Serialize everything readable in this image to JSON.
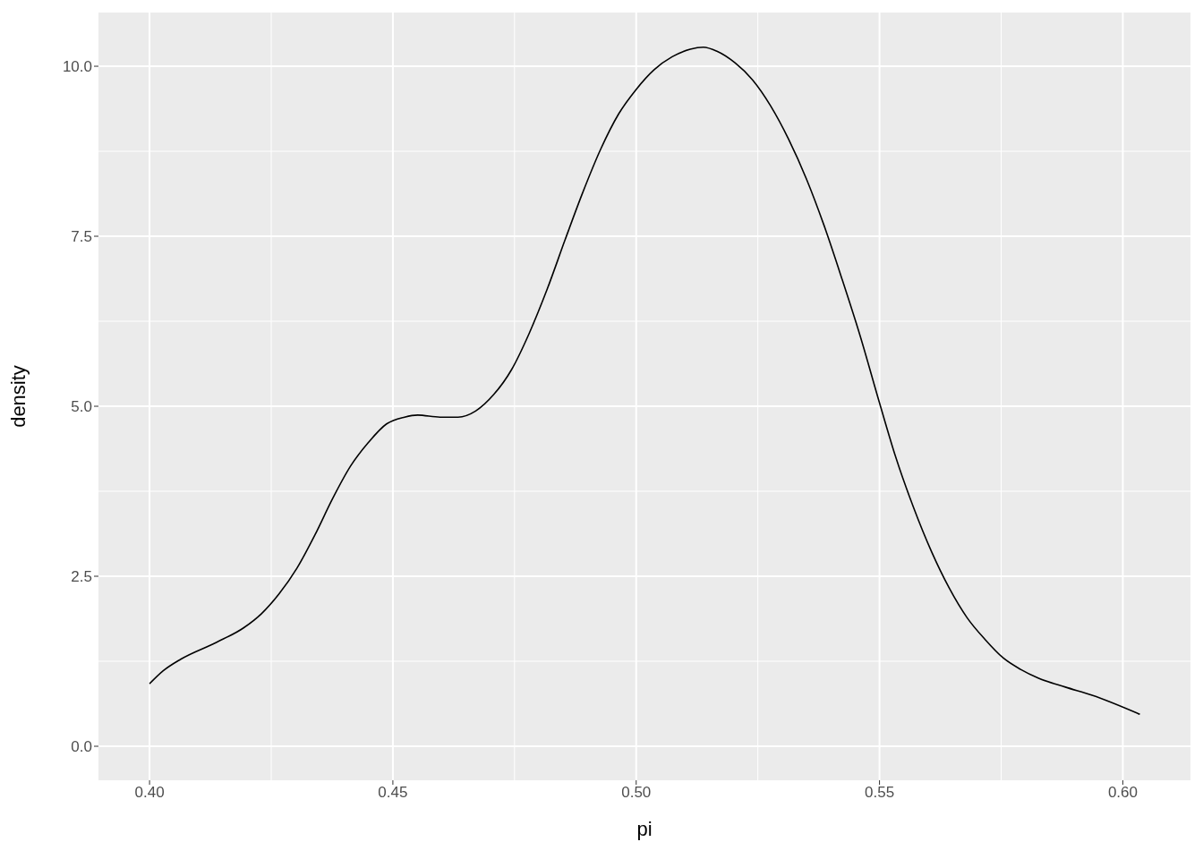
{
  "chart_data": {
    "type": "line",
    "xlabel": "pi",
    "ylabel": "density",
    "xlim": [
      0.3895,
      0.6139
    ],
    "ylim": [
      -0.5,
      10.79
    ],
    "xticks": [
      {
        "value": 0.4,
        "label": "0.40"
      },
      {
        "value": 0.45,
        "label": "0.45"
      },
      {
        "value": 0.5,
        "label": "0.50"
      },
      {
        "value": 0.55,
        "label": "0.55"
      },
      {
        "value": 0.6,
        "label": "0.60"
      }
    ],
    "yticks": [
      {
        "value": 0,
        "label": "0.0"
      },
      2.5,
      {
        "value": 5,
        "label": "5.0"
      },
      7.5,
      {
        "value": 10,
        "label": "10.0"
      }
    ],
    "grid": true,
    "series": [
      {
        "color": "#000000",
        "x": [
          0.4,
          0.4028,
          0.4064,
          0.4138,
          0.4193,
          0.423,
          0.4266,
          0.4303,
          0.434,
          0.4376,
          0.4413,
          0.445,
          0.4487,
          0.4524,
          0.4551,
          0.4597,
          0.4634,
          0.467,
          0.4707,
          0.4744,
          0.478,
          0.4817,
          0.4854,
          0.489,
          0.4927,
          0.4964,
          0.5,
          0.5037,
          0.5074,
          0.5111,
          0.5138,
          0.5166,
          0.5203,
          0.5239,
          0.5276,
          0.5313,
          0.535,
          0.5386,
          0.5423,
          0.546,
          0.55,
          0.5533,
          0.557,
          0.5607,
          0.5643,
          0.568,
          0.5717,
          0.5754,
          0.579,
          0.5827,
          0.5882,
          0.5937,
          0.6035
        ],
        "values": [
          0.92,
          1.11,
          1.28,
          1.53,
          1.74,
          1.95,
          2.24,
          2.62,
          3.11,
          3.64,
          4.12,
          4.47,
          4.74,
          4.84,
          4.87,
          4.84,
          4.84,
          4.93,
          5.17,
          5.54,
          6.07,
          6.72,
          7.45,
          8.14,
          8.78,
          9.3,
          9.66,
          9.95,
          10.14,
          10.25,
          10.28,
          10.22,
          10.05,
          9.8,
          9.42,
          8.93,
          8.34,
          7.66,
          6.87,
          6.04,
          5.05,
          4.26,
          3.51,
          2.86,
          2.33,
          1.89,
          1.57,
          1.3,
          1.13,
          1.0,
          0.87,
          0.75,
          0.47
        ]
      }
    ]
  }
}
